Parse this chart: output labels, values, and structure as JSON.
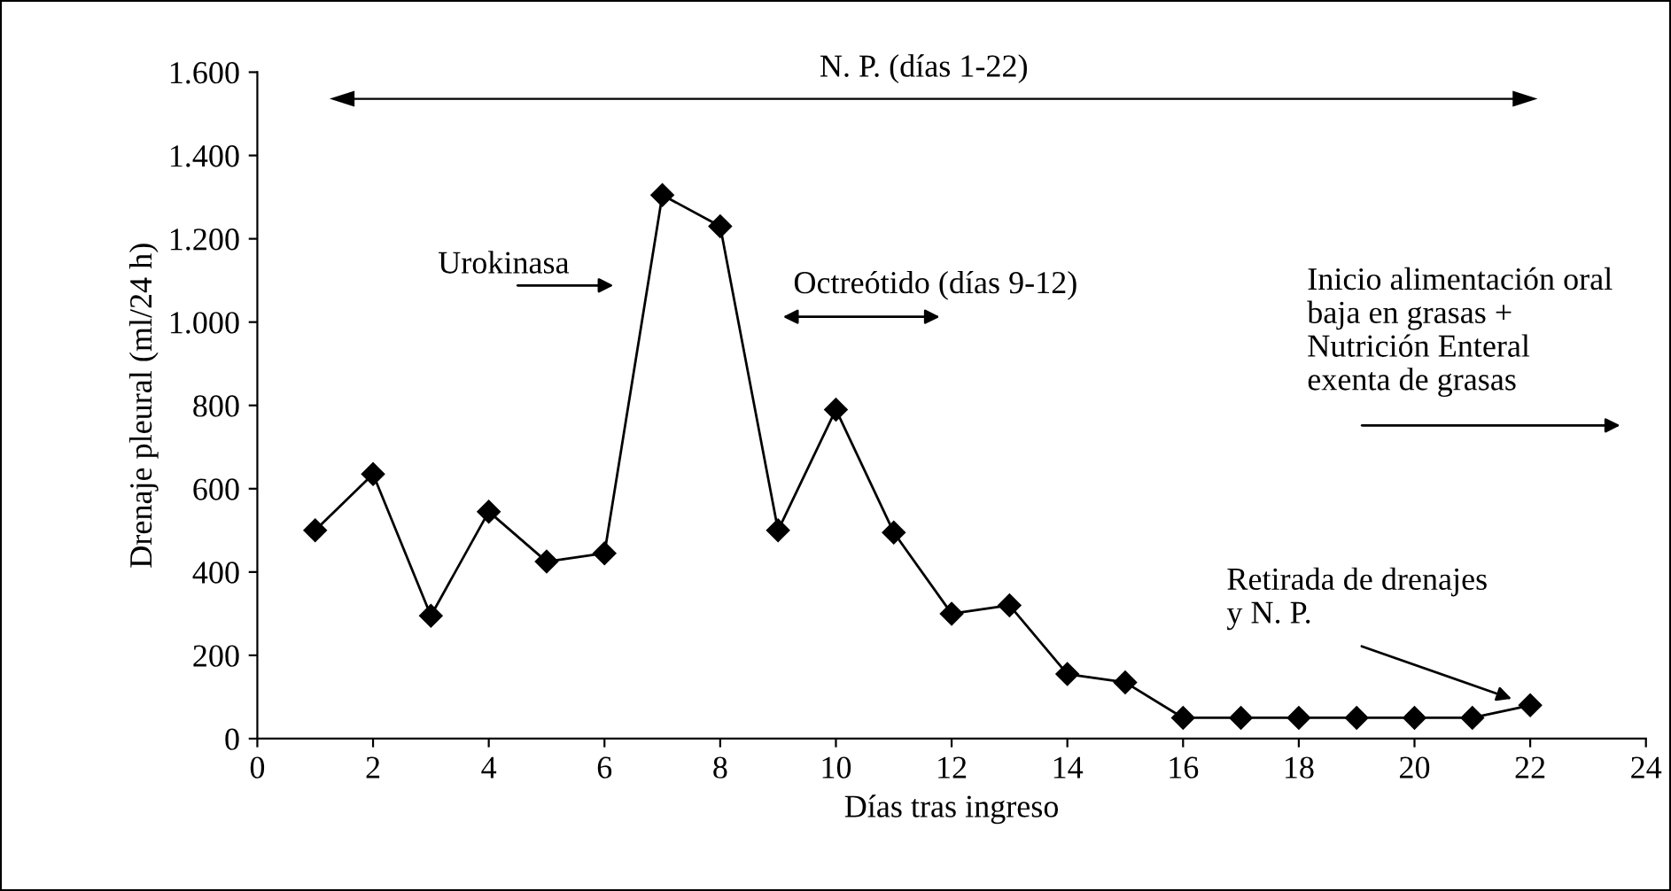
{
  "chart_data": {
    "type": "line",
    "xlabel": "Días tras ingreso",
    "ylabel": "Drenaje pleural (ml/24 h)",
    "x": [
      1,
      2,
      3,
      4,
      5,
      6,
      7,
      8,
      9,
      10,
      11,
      12,
      13,
      14,
      15,
      16,
      17,
      18,
      19,
      20,
      21,
      22
    ],
    "series": [
      {
        "color": "#000000",
        "values": [
          500,
          635,
          295,
          545,
          425,
          445,
          1305,
          1230,
          500,
          790,
          495,
          300,
          320,
          155,
          135,
          50,
          50,
          50,
          50,
          50,
          50,
          80
        ]
      }
    ],
    "marker": "diamond",
    "line_style": "solid",
    "grid": false,
    "legend": false,
    "xlim": [
      0,
      24
    ],
    "xticks": [
      0,
      2,
      4,
      6,
      8,
      10,
      12,
      14,
      16,
      18,
      20,
      22,
      24
    ],
    "ylim": [
      0,
      1600
    ],
    "yticks": [
      {
        "value": 0,
        "label": "0"
      },
      {
        "value": 200,
        "label": "200"
      },
      {
        "value": 400,
        "label": "400"
      },
      {
        "value": 600,
        "label": "600"
      },
      {
        "value": 800,
        "label": "800"
      },
      {
        "value": 1000,
        "label": "1.000"
      },
      {
        "value": 1200,
        "label": "1.200"
      },
      {
        "value": 1400,
        "label": "1.400"
      },
      {
        "value": 1600,
        "label": "1.600"
      }
    ],
    "annotations": [
      "N. P. (días 1-22)",
      "Urokinasa",
      "Octreótido (días 9-12)",
      "Inicio alimentación oral\nbaja en grasas +\nNutrición Enteral\nexenta de grasas",
      {
        "text": "Retirada de drenajes\ny N. P.",
        "x": 22,
        "y": 80
      }
    ]
  }
}
